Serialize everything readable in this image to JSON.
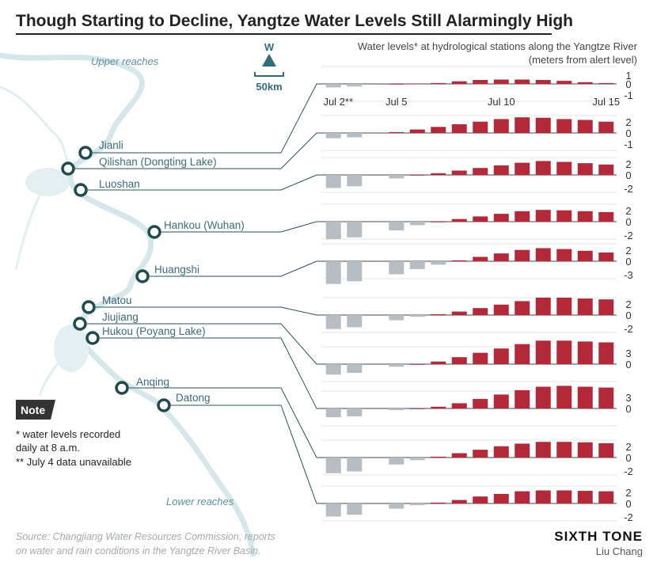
{
  "title": "Though Starting to Decline, Yangtze Water Levels Still Alarmingly High",
  "subtitle_line1": "Water levels* at hydrological stations along the Yangtze River",
  "subtitle_line2": "(meters from alert level)",
  "map": {
    "compass_label": "W",
    "scale_label": "50km",
    "upper_reaches": "Upper reaches",
    "lower_reaches": "Lower reaches"
  },
  "note": {
    "badge": "Note",
    "line1": "* water levels recorded",
    "line2": "daily at 8 a.m.",
    "line3": "** July 4 data unavailable"
  },
  "source_line1": "Source: Changjiang Water Resources Commission, reports",
  "source_line2": "on water and rain conditions in the Yangtze River Basin.",
  "brand": "SIXTH TONE",
  "author": "Liu Chang",
  "colors": {
    "positive": "#b3293a",
    "negative": "#b6bec3",
    "river": "#cfe3e8",
    "line": "#2c4f5a",
    "station_ring": "#1f4b4e"
  },
  "chart_data": {
    "type": "bar",
    "categories": [
      "Jul 2",
      "Jul 3",
      "Jul 4",
      "Jul 5",
      "Jul 6",
      "Jul 7",
      "Jul 8",
      "Jul 9",
      "Jul 10",
      "Jul 11",
      "Jul 12",
      "Jul 13",
      "Jul 14",
      "Jul 15"
    ],
    "date_labels": [
      "Jul 2**",
      "Jul 5",
      "Jul 10",
      "Jul 15"
    ],
    "unit": "meters from alert level",
    "series": [
      {
        "name": "Jianli",
        "ticks": [
          "1",
          "0",
          "-1"
        ],
        "values": [
          -0.4,
          -0.3,
          null,
          0.0,
          0.05,
          0.1,
          0.3,
          0.45,
          0.5,
          0.5,
          0.45,
          0.35,
          0.2,
          0.1
        ]
      },
      {
        "name": "Qilishan (Dongting Lake)",
        "ticks": [
          "2",
          "0",
          "-1"
        ],
        "values": [
          -0.6,
          -0.5,
          null,
          0.1,
          0.4,
          0.7,
          1.0,
          1.3,
          1.6,
          1.8,
          1.75,
          1.6,
          1.5,
          1.3
        ]
      },
      {
        "name": "Luoshan",
        "ticks": [
          "2",
          "0",
          "-2"
        ],
        "values": [
          -1.5,
          -1.3,
          null,
          -0.4,
          0.0,
          0.2,
          0.5,
          0.8,
          1.1,
          1.4,
          1.6,
          1.5,
          1.35,
          1.2
        ]
      },
      {
        "name": "Hankou (Wuhan)",
        "ticks": [
          "2",
          "0",
          "-2"
        ],
        "values": [
          -2.0,
          -1.8,
          null,
          -1.0,
          -0.4,
          0.0,
          0.3,
          0.6,
          0.9,
          1.2,
          1.35,
          1.3,
          1.2,
          1.1
        ]
      },
      {
        "name": "Huangshi",
        "ticks": [
          "2",
          "0",
          "-3"
        ],
        "values": [
          -2.6,
          -2.3,
          null,
          -1.5,
          -0.9,
          -0.4,
          0.1,
          0.5,
          0.9,
          1.3,
          1.5,
          1.4,
          1.2,
          1.0
        ]
      },
      {
        "name": "Matou",
        "ticks": [
          "2",
          "0",
          "-2"
        ],
        "values": [
          -1.6,
          -1.4,
          null,
          -0.6,
          -0.2,
          0.1,
          0.4,
          0.8,
          1.2,
          1.6,
          2.0,
          2.0,
          1.9,
          1.8
        ]
      },
      {
        "name": "Jiujiang",
        "ticks": [
          "3",
          "0"
        ],
        "values": [
          -1.2,
          -1.0,
          null,
          -0.3,
          0.0,
          0.3,
          0.8,
          1.3,
          1.8,
          2.3,
          2.7,
          2.7,
          2.6,
          2.5
        ]
      },
      {
        "name": "Hukou (Poyang Lake)",
        "ticks": [
          "3",
          "0"
        ],
        "values": [
          -1.0,
          -0.9,
          null,
          -0.2,
          0.0,
          0.2,
          0.6,
          1.1,
          1.6,
          2.1,
          2.5,
          2.6,
          2.5,
          2.4
        ]
      },
      {
        "name": "Anqing",
        "ticks": [
          "2",
          "0",
          "-2"
        ],
        "values": [
          -1.8,
          -1.6,
          null,
          -0.8,
          -0.3,
          0.1,
          0.5,
          0.9,
          1.3,
          1.6,
          1.8,
          1.8,
          1.75,
          1.65
        ]
      },
      {
        "name": "Datong",
        "ticks": [
          "2",
          "0",
          "-2"
        ],
        "values": [
          -1.5,
          -1.3,
          null,
          -0.6,
          -0.2,
          0.1,
          0.4,
          0.8,
          1.1,
          1.4,
          1.5,
          1.5,
          1.45,
          1.4
        ]
      }
    ]
  }
}
